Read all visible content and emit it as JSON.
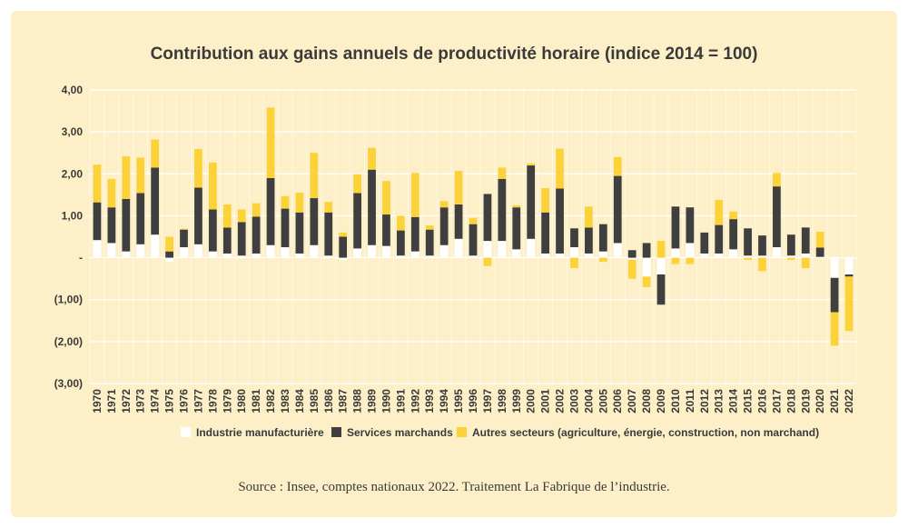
{
  "chart_data": {
    "type": "bar",
    "stacked": true,
    "title": "Contribution aux gains annuels de productivité horaire (indice 2014 = 100)",
    "source": "Source : Insee, comptes nationaux 2022. Traitement La Fabrique de l’industrie.",
    "ylim": [
      -3,
      4
    ],
    "yticks": [
      4,
      3,
      2,
      1,
      0,
      -1,
      -2,
      -3
    ],
    "ytick_labels": [
      "4,00",
      "3,00",
      "2,00",
      "1,00",
      "-",
      "(1,00)",
      "(2,00)",
      "(3,00)"
    ],
    "grid": true,
    "legend_position": "bottom",
    "categories": [
      "1970",
      "1971",
      "1972",
      "1973",
      "1974",
      "1975",
      "1976",
      "1977",
      "1978",
      "1979",
      "1980",
      "1981",
      "1982",
      "1983",
      "1984",
      "1985",
      "1986",
      "1987",
      "1988",
      "1989",
      "1990",
      "1991",
      "1992",
      "1993",
      "1994",
      "1995",
      "1996",
      "1997",
      "1998",
      "1999",
      "2000",
      "2001",
      "2002",
      "2003",
      "2004",
      "2005",
      "2006",
      "2007",
      "2008",
      "2009",
      "2010",
      "2011",
      "2012",
      "2013",
      "2014",
      "2015",
      "2016",
      "2017",
      "2018",
      "2019",
      "2020",
      "2021",
      "2022"
    ],
    "series": [
      {
        "name": "Industrie manufacturière",
        "color": "#ffffff",
        "values": [
          0.42,
          0.35,
          0.15,
          0.32,
          0.55,
          -0.1,
          0.25,
          0.32,
          0.15,
          0.1,
          0.05,
          0.1,
          0.3,
          0.25,
          0.1,
          0.3,
          0.05,
          -0.05,
          0.22,
          0.3,
          0.28,
          0.05,
          0.15,
          0.05,
          0.3,
          0.45,
          0.05,
          0.4,
          0.4,
          0.2,
          0.45,
          0.1,
          0.1,
          0.25,
          0.1,
          0.15,
          0.35,
          -0.05,
          -0.45,
          -0.4,
          0.22,
          0.35,
          0.1,
          0.1,
          0.2,
          0.05,
          0.05,
          0.25,
          0.05,
          0.1,
          0.02,
          -0.48,
          -0.4
        ]
      },
      {
        "name": "Services marchands",
        "color": "#3f3f3f",
        "values": [
          0.9,
          0.85,
          1.25,
          1.22,
          1.6,
          0.15,
          0.42,
          1.35,
          1.0,
          0.62,
          0.8,
          0.88,
          1.6,
          0.92,
          0.98,
          1.12,
          1.03,
          0.5,
          1.32,
          1.8,
          0.75,
          0.6,
          0.82,
          0.62,
          0.9,
          0.82,
          0.75,
          1.12,
          1.48,
          1.0,
          1.75,
          0.98,
          1.55,
          0.45,
          0.62,
          0.65,
          1.6,
          0.18,
          0.35,
          -0.72,
          1.0,
          0.85,
          0.5,
          0.68,
          0.72,
          0.65,
          0.48,
          1.45,
          0.5,
          0.62,
          0.22,
          -0.82,
          -0.05
        ]
      },
      {
        "name": "Autres secteurs (agriculture, énergie, construction, non marchand)",
        "color": "#fcd23a",
        "values": [
          0.9,
          0.68,
          1.02,
          0.85,
          0.67,
          0.35,
          0.02,
          0.92,
          1.12,
          0.55,
          0.3,
          0.32,
          1.68,
          0.3,
          0.47,
          1.08,
          0.25,
          0.1,
          0.45,
          0.52,
          0.8,
          0.35,
          1.05,
          0.1,
          0.15,
          0.8,
          0.15,
          -0.2,
          0.27,
          0.05,
          0.05,
          0.58,
          0.95,
          -0.25,
          0.5,
          -0.1,
          0.45,
          -0.45,
          -0.25,
          0.4,
          -0.15,
          -0.15,
          0.0,
          0.6,
          0.18,
          -0.05,
          -0.32,
          0.32,
          -0.05,
          -0.25,
          0.38,
          -0.8,
          -1.3
        ]
      }
    ]
  }
}
